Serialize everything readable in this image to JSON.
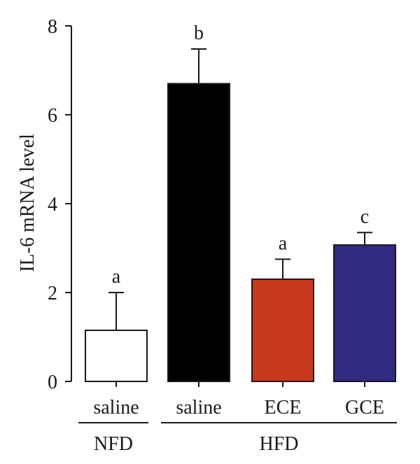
{
  "chart_data": {
    "type": "bar",
    "title": "",
    "xlabel": "",
    "ylabel": "IL-6 mRNA level",
    "ylim": [
      0,
      8
    ],
    "yticks": [
      0,
      2,
      4,
      6,
      8
    ],
    "grid": false,
    "categories": [
      "saline",
      "saline",
      "ECE",
      "GCE"
    ],
    "groups": [
      {
        "label": "NFD",
        "members": [
          0
        ]
      },
      {
        "label": "HFD",
        "members": [
          1,
          2,
          3
        ]
      }
    ],
    "values": [
      1.15,
      6.7,
      2.3,
      3.07
    ],
    "errors": [
      0.85,
      0.78,
      0.45,
      0.28
    ],
    "significance_letters": [
      "a",
      "b",
      "a",
      "c"
    ],
    "colors": [
      "#ffffff",
      "#000000",
      "#c9391d",
      "#302a80"
    ]
  }
}
